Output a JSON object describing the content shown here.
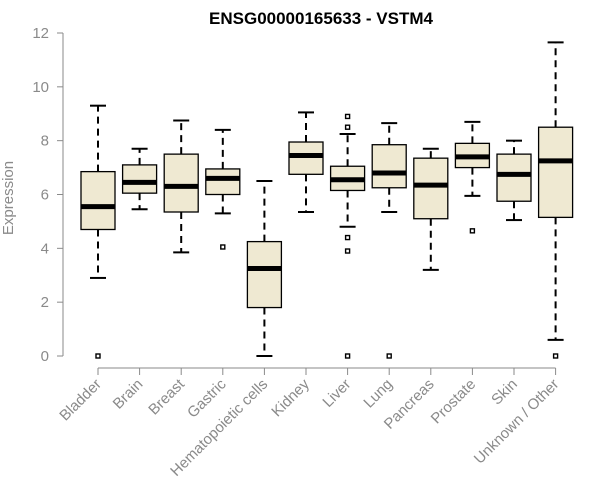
{
  "chart_data": {
    "type": "boxplot",
    "title": "ENSG00000165633 - VSTM4",
    "ylabel": "Expression",
    "xlabel": "",
    "ylim": [
      0,
      12
    ],
    "yticks": [
      0,
      2,
      4,
      6,
      8,
      10,
      12
    ],
    "grid": false,
    "legend": "none",
    "colors": {
      "box_fill": "#efe9d2",
      "stroke": "#000000",
      "axis": "#8a8a8a",
      "title": "#000000"
    },
    "categories": [
      "Bladder",
      "Brain",
      "Breast",
      "Gastric",
      "Hematopoietic cells",
      "Kidney",
      "Liver",
      "Lung",
      "Pancreas",
      "Prostate",
      "Skin",
      "Unknown / Other"
    ],
    "boxes": [
      {
        "category": "Bladder",
        "min": 2.9,
        "q1": 4.7,
        "median": 5.55,
        "q3": 6.85,
        "max": 9.3,
        "outliers": [
          0.0
        ]
      },
      {
        "category": "Brain",
        "min": 5.45,
        "q1": 6.05,
        "median": 6.45,
        "q3": 7.1,
        "max": 7.7,
        "outliers": []
      },
      {
        "category": "Breast",
        "min": 3.85,
        "q1": 5.35,
        "median": 6.3,
        "q3": 7.5,
        "max": 8.75,
        "outliers": []
      },
      {
        "category": "Gastric",
        "min": 5.3,
        "q1": 6.0,
        "median": 6.6,
        "q3": 6.95,
        "max": 8.4,
        "outliers": [
          4.05
        ]
      },
      {
        "category": "Hematopoietic cells",
        "min": 0.0,
        "q1": 1.8,
        "median": 3.25,
        "q3": 4.25,
        "max": 6.5,
        "outliers": []
      },
      {
        "category": "Kidney",
        "min": 5.35,
        "q1": 6.75,
        "median": 7.45,
        "q3": 7.95,
        "max": 9.05,
        "outliers": []
      },
      {
        "category": "Liver",
        "min": 4.8,
        "q1": 6.15,
        "median": 6.55,
        "q3": 7.05,
        "max": 8.25,
        "outliers": [
          0.0,
          3.9,
          4.4,
          8.5,
          8.9
        ]
      },
      {
        "category": "Lung",
        "min": 5.35,
        "q1": 6.25,
        "median": 6.8,
        "q3": 7.85,
        "max": 8.65,
        "outliers": [
          0.0
        ]
      },
      {
        "category": "Pancreas",
        "min": 3.2,
        "q1": 5.1,
        "median": 6.35,
        "q3": 7.35,
        "max": 7.7,
        "outliers": []
      },
      {
        "category": "Prostate",
        "min": 5.95,
        "q1": 7.0,
        "median": 7.4,
        "q3": 7.9,
        "max": 8.7,
        "outliers": [
          4.65
        ]
      },
      {
        "category": "Skin",
        "min": 5.05,
        "q1": 5.75,
        "median": 6.75,
        "q3": 7.5,
        "max": 8.0,
        "outliers": []
      },
      {
        "category": "Unknown / Other",
        "min": 0.6,
        "q1": 5.15,
        "median": 7.25,
        "q3": 8.5,
        "max": 11.65,
        "outliers": [
          0.0
        ]
      }
    ]
  }
}
